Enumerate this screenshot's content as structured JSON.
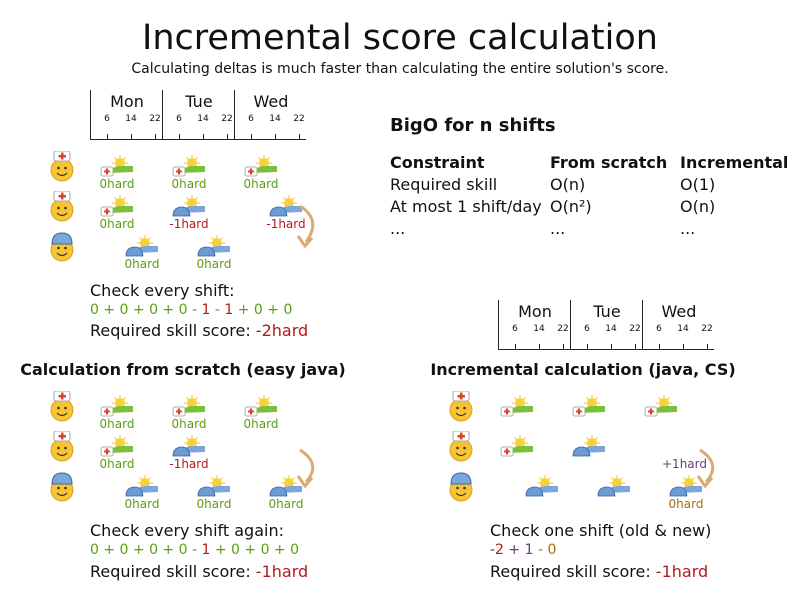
{
  "title": "Incremental score calculation",
  "subtitle": "Calculating deltas is much faster than calculating the entire solution's score.",
  "colors": {
    "ok": "#5c9e12",
    "bad": "#b3191c",
    "plus": "#6b3d78",
    "neutral": "#a36f12",
    "arrow": "#d9ab6f"
  },
  "timeline": {
    "days": [
      "Mon",
      "Tue",
      "Wed"
    ],
    "hours": [
      6,
      14,
      22
    ]
  },
  "top": {
    "employees": [
      "nurse",
      "nurse",
      "cap"
    ],
    "shifts": [
      {
        "employee": 0,
        "day": "Mon",
        "start": 6,
        "skill": "nurse",
        "score": "0hard",
        "status": "ok"
      },
      {
        "employee": 0,
        "day": "Tue",
        "start": 6,
        "skill": "nurse",
        "score": "0hard",
        "status": "ok"
      },
      {
        "employee": 0,
        "day": "Wed",
        "start": 6,
        "skill": "nurse",
        "score": "0hard",
        "status": "ok"
      },
      {
        "employee": 1,
        "day": "Mon",
        "start": 6,
        "skill": "nurse",
        "score": "0hard",
        "status": "ok"
      },
      {
        "employee": 1,
        "day": "Tue",
        "start": 6,
        "skill": "cap",
        "score": "-1hard",
        "status": "bad"
      },
      {
        "employee": 1,
        "day": "Wed",
        "start": 14,
        "skill": "cap",
        "score": "-1hard",
        "status": "bad"
      },
      {
        "employee": 2,
        "day": "Mon",
        "start": 14,
        "skill": "cap",
        "score": "0hard",
        "status": "ok"
      },
      {
        "employee": 2,
        "day": "Tue",
        "start": 14,
        "skill": "cap",
        "score": "0hard",
        "status": "ok"
      }
    ],
    "check": "Check every shift:",
    "formula": [
      {
        "t": "0 + 0 + 0 + 0 - ",
        "c": "ok"
      },
      {
        "t": "1",
        "c": "bad"
      },
      {
        "t": " - ",
        "c": "ok"
      },
      {
        "t": "1",
        "c": "bad"
      },
      {
        "t": " + 0 + 0",
        "c": "ok"
      }
    ],
    "score_label": "Required skill score: ",
    "score": "-2hard"
  },
  "bigo": {
    "title": "BigO for n shifts",
    "headers": [
      "Constraint",
      "From scratch",
      "Incremental"
    ],
    "rows": [
      [
        "Required skill",
        "O(n)",
        "O(1)"
      ],
      [
        "At most 1 shift/day",
        "O(n²)",
        "O(n)"
      ],
      [
        "...",
        "...",
        "..."
      ]
    ]
  },
  "scratch": {
    "heading": "Calculation from scratch (easy java)",
    "employees": [
      "nurse",
      "nurse",
      "cap"
    ],
    "shifts": [
      {
        "employee": 0,
        "day": "Mon",
        "start": 6,
        "skill": "nurse",
        "score": "0hard",
        "status": "ok"
      },
      {
        "employee": 0,
        "day": "Tue",
        "start": 6,
        "skill": "nurse",
        "score": "0hard",
        "status": "ok"
      },
      {
        "employee": 0,
        "day": "Wed",
        "start": 6,
        "skill": "nurse",
        "score": "0hard",
        "status": "ok"
      },
      {
        "employee": 1,
        "day": "Mon",
        "start": 6,
        "skill": "nurse",
        "score": "0hard",
        "status": "ok"
      },
      {
        "employee": 1,
        "day": "Tue",
        "start": 6,
        "skill": "cap",
        "score": "-1hard",
        "status": "bad"
      },
      {
        "employee": 2,
        "day": "Mon",
        "start": 14,
        "skill": "cap",
        "score": "0hard",
        "status": "ok"
      },
      {
        "employee": 2,
        "day": "Tue",
        "start": 14,
        "skill": "cap",
        "score": "0hard",
        "status": "ok"
      },
      {
        "employee": 2,
        "day": "Wed",
        "start": 14,
        "skill": "cap",
        "score": "0hard",
        "status": "ok"
      }
    ],
    "check": "Check every shift again:",
    "formula": [
      {
        "t": "0 + 0 + 0 + 0 - ",
        "c": "ok"
      },
      {
        "t": "1",
        "c": "bad"
      },
      {
        "t": " + 0 + 0 + 0",
        "c": "ok"
      }
    ],
    "score_label": "Required skill score: ",
    "score": "-1hard"
  },
  "incremental": {
    "heading": "Incremental calculation (java, CS)",
    "employees": [
      "nurse",
      "nurse",
      "cap"
    ],
    "shifts": [
      {
        "employee": 0,
        "day": "Mon",
        "start": 6,
        "skill": "nurse",
        "score": "",
        "status": "ok"
      },
      {
        "employee": 0,
        "day": "Tue",
        "start": 6,
        "skill": "nurse",
        "score": "",
        "status": "ok"
      },
      {
        "employee": 0,
        "day": "Wed",
        "start": 6,
        "skill": "nurse",
        "score": "",
        "status": "ok"
      },
      {
        "employee": 1,
        "day": "Mon",
        "start": 6,
        "skill": "nurse",
        "score": "",
        "status": "ok"
      },
      {
        "employee": 1,
        "day": "Tue",
        "start": 6,
        "skill": "cap",
        "score": "",
        "status": "ok"
      },
      {
        "employee": 2,
        "day": "Mon",
        "start": 14,
        "skill": "cap",
        "score": "",
        "status": "ok"
      },
      {
        "employee": 2,
        "day": "Tue",
        "start": 14,
        "skill": "cap",
        "score": "",
        "status": "ok"
      },
      {
        "employee": 2,
        "day": "Wed",
        "start": 14,
        "skill": "cap",
        "score": "0hard",
        "status": "neutral"
      }
    ],
    "delta": "+1hard",
    "check": "Check one shift (old & new)",
    "formula": [
      {
        "t": "-2",
        "c": "bad"
      },
      {
        "t": " + 1",
        "c": "plus"
      },
      {
        "t": " - 0",
        "c": "neutral"
      }
    ],
    "score_label": "Required skill score: ",
    "score": "-1hard"
  }
}
